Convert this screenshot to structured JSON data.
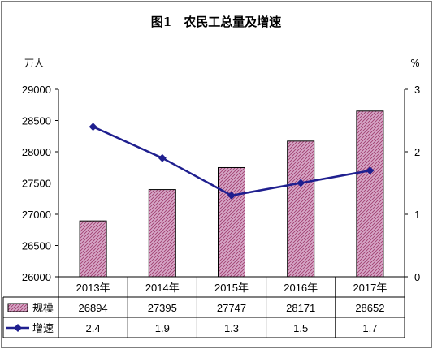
{
  "chart_data": {
    "type": "bar",
    "title": "图1　农民工总量及增速",
    "left_unit": "万人",
    "right_unit": "%",
    "categories": [
      "2013年",
      "2014年",
      "2015年",
      "2016年",
      "2017年"
    ],
    "y_left": {
      "min": 26000,
      "max": 29000,
      "step": 500,
      "ticks": [
        "26000",
        "26500",
        "27000",
        "27500",
        "28000",
        "28500",
        "29000"
      ]
    },
    "y_right": {
      "min": 0,
      "max": 3,
      "step": 1,
      "ticks": [
        "0",
        "1",
        "2",
        "3"
      ]
    },
    "series": [
      {
        "name": "规模",
        "kind": "bar",
        "axis": "left",
        "color": "#d7a8c8",
        "hatch": "#a04070",
        "values": [
          26894,
          27395,
          27747,
          28171,
          28652
        ],
        "labels": [
          "26894",
          "27395",
          "27747",
          "28171",
          "28652"
        ]
      },
      {
        "name": "增速",
        "kind": "line",
        "axis": "right",
        "color": "#1f1f8f",
        "values": [
          2.4,
          1.9,
          1.3,
          1.5,
          1.7
        ],
        "labels": [
          "2.4",
          "1.9",
          "1.3",
          "1.5",
          "1.7"
        ]
      }
    ],
    "grid": false,
    "legend": "data-table"
  }
}
